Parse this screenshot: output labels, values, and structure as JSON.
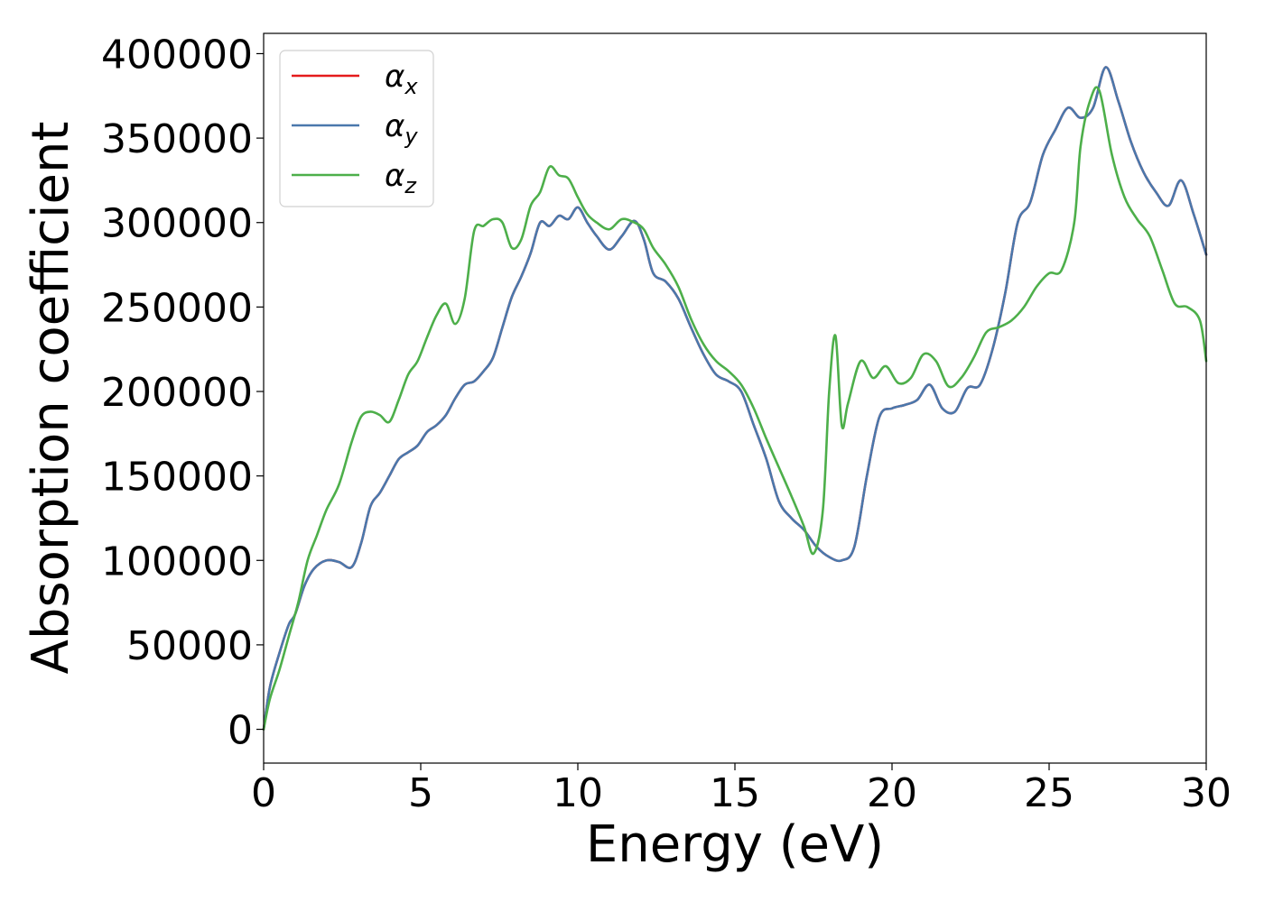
{
  "chart_data": {
    "type": "line",
    "title": "",
    "xlabel": "Energy (eV)",
    "ylabel": "Absorption coefficient",
    "xlim": [
      0,
      30
    ],
    "ylim": [
      -20000,
      412000
    ],
    "xticks": [
      0,
      5,
      10,
      15,
      20,
      25,
      30
    ],
    "xtick_labels": [
      "0",
      "5",
      "10",
      "15",
      "20",
      "25",
      "30"
    ],
    "yticks": [
      0,
      50000,
      100000,
      150000,
      200000,
      250000,
      300000,
      350000,
      400000
    ],
    "ytick_labels": [
      "0",
      "50000",
      "100000",
      "150000",
      "200000",
      "250000",
      "300000",
      "350000",
      "400000"
    ],
    "grid": false,
    "legend_position": "top-left",
    "series": [
      {
        "name": "α_x",
        "legend_symbol": "α",
        "legend_subscript": "x",
        "color": "#e41a1c",
        "x": [
          0,
          0.2,
          0.5,
          0.8,
          1.0,
          1.3,
          1.6,
          2.0,
          2.4,
          2.8,
          3.1,
          3.4,
          3.7,
          4.0,
          4.3,
          4.6,
          4.9,
          5.2,
          5.5,
          5.8,
          6.1,
          6.4,
          6.7,
          7.0,
          7.3,
          7.6,
          7.9,
          8.2,
          8.5,
          8.8,
          9.1,
          9.4,
          9.7,
          10.0,
          10.3,
          10.6,
          11.0,
          11.4,
          11.8,
          12.1,
          12.4,
          12.8,
          13.2,
          13.6,
          14.0,
          14.4,
          14.8,
          15.2,
          15.6,
          16.0,
          16.4,
          16.8,
          17.2,
          17.6,
          18.0,
          18.4,
          18.8,
          19.2,
          19.6,
          20.0,
          20.4,
          20.8,
          21.2,
          21.6,
          22.0,
          22.4,
          22.8,
          23.2,
          23.6,
          24.0,
          24.4,
          24.8,
          25.2,
          25.6,
          26.0,
          26.4,
          26.8,
          27.2,
          27.6,
          28.0,
          28.4,
          28.8,
          29.2,
          29.6,
          30.0
        ],
        "y": [
          0,
          25000,
          45000,
          62000,
          68000,
          85000,
          95000,
          100000,
          99000,
          96000,
          110000,
          132000,
          140000,
          150000,
          160000,
          164000,
          168000,
          176000,
          180000,
          186000,
          196000,
          204000,
          206000,
          212000,
          220000,
          238000,
          256000,
          268000,
          282000,
          300000,
          298000,
          304000,
          302000,
          309000,
          300000,
          292000,
          284000,
          292000,
          301000,
          290000,
          270000,
          265000,
          255000,
          238000,
          222000,
          210000,
          206000,
          200000,
          180000,
          160000,
          135000,
          125000,
          118000,
          108000,
          102000,
          100000,
          108000,
          150000,
          185000,
          190000,
          192000,
          195000,
          204000,
          190000,
          188000,
          202000,
          204000,
          225000,
          258000,
          300000,
          312000,
          340000,
          355000,
          368000,
          362000,
          368000,
          392000,
          372000,
          348000,
          330000,
          318000,
          310000,
          325000,
          305000,
          281000
        ]
      },
      {
        "name": "α_y",
        "legend_symbol": "α",
        "legend_subscript": "y",
        "color": "#4a78ac",
        "x": [
          0,
          0.2,
          0.5,
          0.8,
          1.0,
          1.3,
          1.6,
          2.0,
          2.4,
          2.8,
          3.1,
          3.4,
          3.7,
          4.0,
          4.3,
          4.6,
          4.9,
          5.2,
          5.5,
          5.8,
          6.1,
          6.4,
          6.7,
          7.0,
          7.3,
          7.6,
          7.9,
          8.2,
          8.5,
          8.8,
          9.1,
          9.4,
          9.7,
          10.0,
          10.3,
          10.6,
          11.0,
          11.4,
          11.8,
          12.1,
          12.4,
          12.8,
          13.2,
          13.6,
          14.0,
          14.4,
          14.8,
          15.2,
          15.6,
          16.0,
          16.4,
          16.8,
          17.2,
          17.6,
          18.0,
          18.4,
          18.8,
          19.2,
          19.6,
          20.0,
          20.4,
          20.8,
          21.2,
          21.6,
          22.0,
          22.4,
          22.8,
          23.2,
          23.6,
          24.0,
          24.4,
          24.8,
          25.2,
          25.6,
          26.0,
          26.4,
          26.8,
          27.2,
          27.6,
          28.0,
          28.4,
          28.8,
          29.2,
          29.6,
          30.0
        ],
        "y": [
          0,
          25000,
          45000,
          62000,
          68000,
          85000,
          95000,
          100000,
          99000,
          96000,
          110000,
          132000,
          140000,
          150000,
          160000,
          164000,
          168000,
          176000,
          180000,
          186000,
          196000,
          204000,
          206000,
          212000,
          220000,
          238000,
          256000,
          268000,
          282000,
          300000,
          298000,
          304000,
          302000,
          309000,
          300000,
          292000,
          284000,
          292000,
          301000,
          290000,
          270000,
          265000,
          255000,
          238000,
          222000,
          210000,
          206000,
          200000,
          180000,
          160000,
          135000,
          125000,
          118000,
          108000,
          102000,
          100000,
          108000,
          150000,
          185000,
          190000,
          192000,
          195000,
          204000,
          190000,
          188000,
          202000,
          204000,
          225000,
          258000,
          300000,
          312000,
          340000,
          355000,
          368000,
          362000,
          368000,
          392000,
          372000,
          348000,
          330000,
          318000,
          310000,
          325000,
          305000,
          281000
        ]
      },
      {
        "name": "α_z",
        "legend_symbol": "α",
        "legend_subscript": "z",
        "color": "#4daf4a",
        "x": [
          0,
          0.2,
          0.5,
          0.8,
          1.1,
          1.4,
          1.7,
          2.0,
          2.4,
          2.8,
          3.1,
          3.4,
          3.7,
          4.0,
          4.3,
          4.6,
          4.9,
          5.2,
          5.5,
          5.8,
          6.1,
          6.4,
          6.7,
          7.0,
          7.3,
          7.6,
          7.9,
          8.2,
          8.5,
          8.8,
          9.1,
          9.4,
          9.7,
          10.0,
          10.3,
          10.6,
          11.0,
          11.4,
          11.8,
          12.1,
          12.4,
          12.8,
          13.2,
          13.6,
          14.0,
          14.4,
          14.8,
          15.2,
          15.6,
          16.0,
          16.4,
          16.8,
          17.2,
          17.5,
          17.8,
          18.0,
          18.2,
          18.4,
          18.6,
          19.0,
          19.4,
          19.8,
          20.2,
          20.6,
          21.0,
          21.4,
          21.8,
          22.2,
          22.6,
          23.0,
          23.4,
          23.8,
          24.2,
          24.6,
          25.0,
          25.4,
          25.8,
          26.0,
          26.3,
          26.6,
          27.0,
          27.4,
          27.8,
          28.2,
          28.6,
          29.0,
          29.4,
          29.8,
          30.0
        ],
        "y": [
          0,
          18000,
          35000,
          55000,
          75000,
          100000,
          115000,
          130000,
          145000,
          170000,
          185000,
          188000,
          186000,
          182000,
          195000,
          210000,
          218000,
          232000,
          245000,
          252000,
          240000,
          255000,
          295000,
          298000,
          302000,
          300000,
          285000,
          290000,
          310000,
          318000,
          333000,
          328000,
          326000,
          315000,
          305000,
          300000,
          296000,
          302000,
          300000,
          296000,
          285000,
          275000,
          262000,
          243000,
          228000,
          218000,
          212000,
          204000,
          190000,
          172000,
          155000,
          138000,
          120000,
          104000,
          130000,
          200000,
          233000,
          180000,
          193000,
          218000,
          208000,
          215000,
          205000,
          208000,
          222000,
          218000,
          203000,
          208000,
          220000,
          235000,
          238000,
          242000,
          250000,
          262000,
          270000,
          272000,
          300000,
          345000,
          372000,
          378000,
          340000,
          315000,
          302000,
          292000,
          272000,
          252000,
          250000,
          242000,
          218000
        ]
      }
    ]
  }
}
